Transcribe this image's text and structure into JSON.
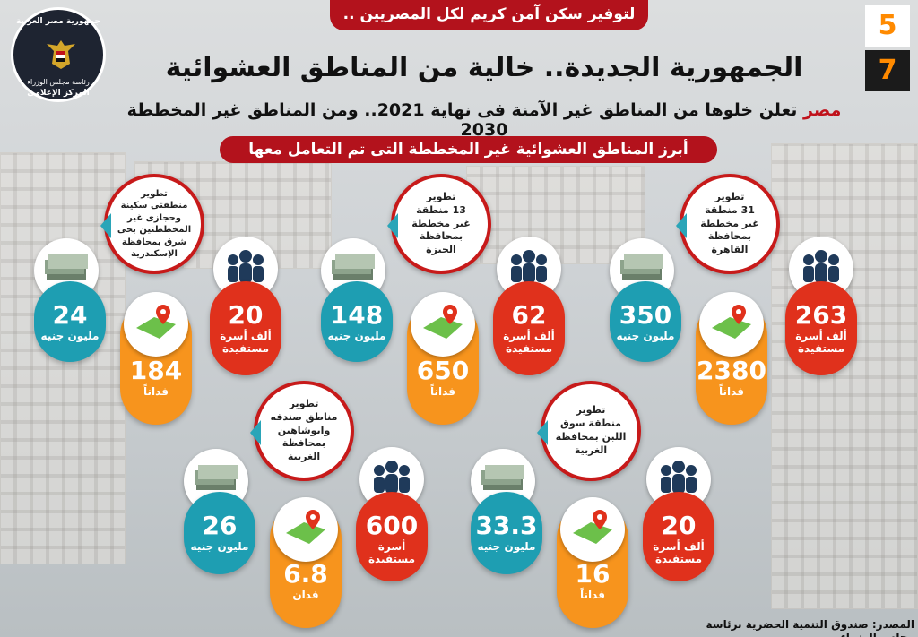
{
  "header": {
    "banner": "لتوفير سكن آمن كريم لكل المصريين ..",
    "number_top": "5",
    "number_bottom": "7",
    "title": "الجمهورية الجديدة.. خالية من المناطق العشوائية",
    "subtitle_red": "مصر",
    "subtitle_rest": " تعلن خلوها من المناطق غير الآمنة فى نهاية 2021.. ومن المناطق غير المخططة 2030",
    "ribbon": "أبرز المناطق العشوائية غير المخططة التى تم التعامل معها"
  },
  "logo": {
    "top_text": "جمهورية مصر العربية",
    "middle_text": "رئاسة مجلس الوزراء",
    "bottom_text": "المركز الإعلامى"
  },
  "groups": [
    {
      "description": "تطوير\n31 منطقة\nغير مخططة\nبمحافظة\nالقاهرة",
      "families_value": "263",
      "families_unit": "ألف أسرة\nمستفيدة",
      "cost_value": "350",
      "cost_unit": "مليون جنيه",
      "area_value": "2380",
      "area_unit": "فداناً"
    },
    {
      "description": "تطوير\n13 منطقة\nغير مخططة\nبمحافظة\nالجيزة",
      "families_value": "62",
      "families_unit": "ألف أسرة\nمستفيدة",
      "cost_value": "148",
      "cost_unit": "مليون جنيه",
      "area_value": "650",
      "area_unit": "فداناً"
    },
    {
      "description": "تطوير\nمنطقتى سكينة\nوحجازى غير\nالمخططتين بحى\nشرق بمحافظة\nالإسكندرية",
      "families_value": "20",
      "families_unit": "ألف أسرة\nمستفيدة",
      "cost_value": "24",
      "cost_unit": "مليون جنيه",
      "area_value": "184",
      "area_unit": "فداناً"
    },
    {
      "description": "تطوير\nمنطقة سوق\nاللبن بمحافظة\nالغربية",
      "families_value": "20",
      "families_unit": "ألف أسرة\nمستفيدة",
      "cost_value": "33.3",
      "cost_unit": "مليون جنيه",
      "area_value": "16",
      "area_unit": "فداناً"
    },
    {
      "description": "تطوير\nمناطق صندفه\nوابوشاهين\nبمحافظة الغربية",
      "families_value": "600",
      "families_unit": "أسرة\nمستفيدة",
      "cost_value": "26",
      "cost_unit": "مليون جنيه",
      "area_value": "6.8",
      "area_unit": "فدان"
    }
  ],
  "footer": {
    "source": "المصدر: صندوق التنمية الحضرية برئاسة مجلس الوزراء"
  },
  "icons": {
    "people": "people-group-icon",
    "money": "money-stack-icon",
    "map": "map-pin-icon"
  },
  "colors": {
    "red": "#e0311c",
    "teal": "#1e9eb2",
    "orange": "#f7941d",
    "banner": "#b3121c"
  }
}
